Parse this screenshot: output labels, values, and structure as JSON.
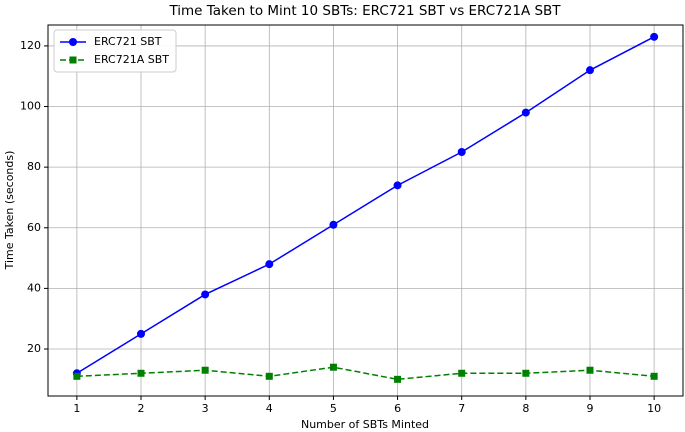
{
  "chart_data": {
    "type": "line",
    "title": "Time Taken to Mint 10 SBTs: ERC721 SBT vs ERC721A SBT",
    "xlabel": "Number of SBTs Minted",
    "ylabel": "Time Taken (seconds)",
    "x": [
      1,
      2,
      3,
      4,
      5,
      6,
      7,
      8,
      9,
      10
    ],
    "series": [
      {
        "name": "ERC721 SBT",
        "color": "#0000ff",
        "marker": "circle",
        "linestyle": "solid",
        "values": [
          12,
          25,
          38,
          48,
          61,
          74,
          85,
          98,
          112,
          123
        ]
      },
      {
        "name": "ERC721A SBT",
        "color": "#008000",
        "marker": "square",
        "linestyle": "dashed",
        "values": [
          11,
          12,
          13,
          11,
          14,
          10,
          12,
          12,
          13,
          11
        ]
      }
    ],
    "xlim": [
      0.55,
      10.45
    ],
    "ylim": [
      4.5,
      126.9
    ],
    "xticks": [
      1,
      2,
      3,
      4,
      5,
      6,
      7,
      8,
      9,
      10
    ],
    "yticks": [
      20,
      40,
      60,
      80,
      100,
      120
    ],
    "grid": true,
    "legend": "upper-left"
  }
}
